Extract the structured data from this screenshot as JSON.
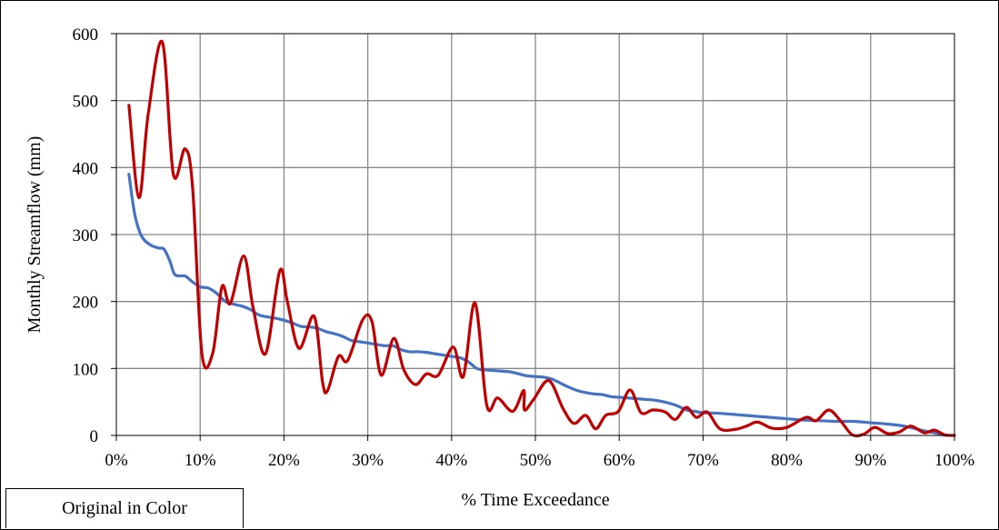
{
  "note_box": {
    "text": "Original in Color"
  },
  "chart_data": {
    "type": "line",
    "xlabel": "% Time Exceedance",
    "ylabel": "Monthly Streamflow (mm)",
    "xlim": [
      0,
      100
    ],
    "ylim": [
      0,
      600
    ],
    "x_ticks": [
      0,
      10,
      20,
      30,
      40,
      50,
      60,
      70,
      80,
      90,
      100
    ],
    "x_tick_labels": [
      "0%",
      "10%",
      "20%",
      "30%",
      "40%",
      "50%",
      "60%",
      "70%",
      "80%",
      "90%",
      "100%"
    ],
    "y_ticks": [
      0,
      100,
      200,
      300,
      400,
      500,
      600
    ],
    "y_tick_labels": [
      "0",
      "100",
      "200",
      "300",
      "400",
      "500",
      "600"
    ],
    "grid": true,
    "legend": "none",
    "series": [
      {
        "color": "#4472C4",
        "smooth": true,
        "points": [
          [
            1.5,
            390
          ],
          [
            2.2,
            330
          ],
          [
            3,
            298
          ],
          [
            4,
            285
          ],
          [
            5,
            280
          ],
          [
            5.7,
            278
          ],
          [
            6.4,
            260
          ],
          [
            7,
            240
          ],
          [
            8.2,
            238
          ],
          [
            9,
            230
          ],
          [
            10,
            222
          ],
          [
            11,
            220
          ],
          [
            12,
            212
          ],
          [
            13,
            200
          ],
          [
            14,
            196
          ],
          [
            15,
            193
          ],
          [
            16,
            188
          ],
          [
            17,
            180
          ],
          [
            18,
            177
          ],
          [
            19,
            175
          ],
          [
            20,
            172
          ],
          [
            21,
            168
          ],
          [
            22,
            163
          ],
          [
            23,
            162
          ],
          [
            24,
            160
          ],
          [
            25,
            155
          ],
          [
            26,
            152
          ],
          [
            27,
            148
          ],
          [
            28,
            142
          ],
          [
            29,
            140
          ],
          [
            30,
            138
          ],
          [
            31,
            136
          ],
          [
            32,
            134
          ],
          [
            33,
            134
          ],
          [
            34,
            128
          ],
          [
            35,
            125
          ],
          [
            36,
            125
          ],
          [
            37,
            124
          ],
          [
            38,
            122
          ],
          [
            39,
            120
          ],
          [
            40,
            118
          ],
          [
            41,
            116
          ],
          [
            42,
            110
          ],
          [
            43,
            100
          ],
          [
            44,
            98
          ],
          [
            45,
            97
          ],
          [
            46,
            96
          ],
          [
            47,
            95
          ],
          [
            48,
            92
          ],
          [
            49,
            89
          ],
          [
            50,
            88
          ],
          [
            51,
            87
          ],
          [
            52,
            84
          ],
          [
            53,
            78
          ],
          [
            54,
            72
          ],
          [
            55,
            67
          ],
          [
            56,
            64
          ],
          [
            57,
            62
          ],
          [
            58,
            61
          ],
          [
            59,
            58
          ],
          [
            60,
            57
          ],
          [
            61,
            56
          ],
          [
            62,
            55
          ],
          [
            63,
            54
          ],
          [
            64,
            53
          ],
          [
            65,
            51
          ],
          [
            66,
            48
          ],
          [
            67,
            44
          ],
          [
            68,
            38
          ],
          [
            69,
            36
          ],
          [
            70,
            34
          ],
          [
            72,
            33
          ],
          [
            74,
            31
          ],
          [
            76,
            29
          ],
          [
            78,
            27
          ],
          [
            80,
            25
          ],
          [
            82,
            23
          ],
          [
            84,
            22
          ],
          [
            86,
            21
          ],
          [
            88,
            21
          ],
          [
            90,
            19
          ],
          [
            92,
            17
          ],
          [
            94,
            14
          ],
          [
            96,
            8
          ],
          [
            98,
            3
          ],
          [
            99,
            0
          ]
        ]
      },
      {
        "color": "#C00000",
        "smooth": true,
        "points": [
          [
            1.5,
            493
          ],
          [
            2.7,
            355
          ],
          [
            3.8,
            480
          ],
          [
            5.5,
            587
          ],
          [
            6.8,
            390
          ],
          [
            8.2,
            428
          ],
          [
            9.1,
            370
          ],
          [
            10.2,
            123
          ],
          [
            11.5,
            123
          ],
          [
            12.6,
            222
          ],
          [
            13.6,
            197
          ],
          [
            15.2,
            268
          ],
          [
            16.3,
            192
          ],
          [
            17.8,
            122
          ],
          [
            19.5,
            246
          ],
          [
            20.4,
            200
          ],
          [
            21.8,
            130
          ],
          [
            23.6,
            178
          ],
          [
            24.6,
            80
          ],
          [
            25.2,
            67
          ],
          [
            26.5,
            118
          ],
          [
            27.6,
            112
          ],
          [
            29.4,
            173
          ],
          [
            30.5,
            170
          ],
          [
            31.6,
            90
          ],
          [
            33.1,
            145
          ],
          [
            34.3,
            98
          ],
          [
            35.7,
            76
          ],
          [
            37,
            92
          ],
          [
            38.4,
            90
          ],
          [
            40.2,
            132
          ],
          [
            41.4,
            88
          ],
          [
            42.8,
            198
          ],
          [
            44.2,
            45
          ],
          [
            45.5,
            56
          ],
          [
            47.3,
            36
          ],
          [
            48.6,
            67
          ],
          [
            48.7,
            38
          ],
          [
            49.8,
            54
          ],
          [
            51.6,
            82
          ],
          [
            53.3,
            40
          ],
          [
            54.6,
            18
          ],
          [
            56,
            30
          ],
          [
            57.2,
            10
          ],
          [
            58.4,
            30
          ],
          [
            59.9,
            36
          ],
          [
            61.3,
            68
          ],
          [
            62.6,
            34
          ],
          [
            64,
            38
          ],
          [
            65.5,
            35
          ],
          [
            66.7,
            24
          ],
          [
            68,
            42
          ],
          [
            69.2,
            27
          ],
          [
            70.5,
            35
          ],
          [
            72,
            10
          ],
          [
            73.8,
            9
          ],
          [
            75.2,
            14
          ],
          [
            76.5,
            20
          ],
          [
            78.2,
            11
          ],
          [
            80,
            12
          ],
          [
            82.3,
            27
          ],
          [
            83.5,
            22
          ],
          [
            85,
            38
          ],
          [
            86.4,
            22
          ],
          [
            87.8,
            1
          ],
          [
            89.2,
            2
          ],
          [
            90.5,
            12
          ],
          [
            92,
            3
          ],
          [
            93.4,
            5
          ],
          [
            94.8,
            14
          ],
          [
            96.4,
            4
          ],
          [
            97.6,
            8
          ],
          [
            98.8,
            1
          ],
          [
            100,
            0
          ]
        ]
      }
    ]
  }
}
